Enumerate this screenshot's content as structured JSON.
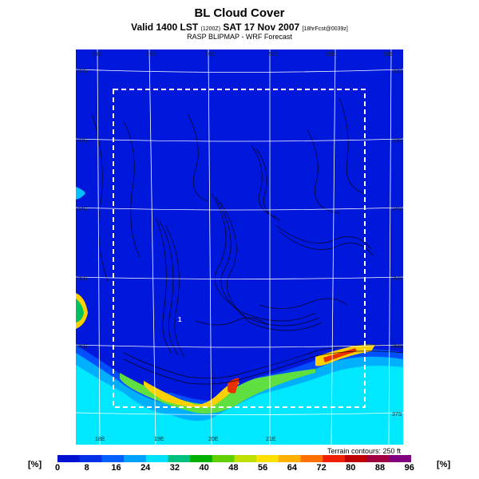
{
  "header": {
    "title": "BL Cloud Cover",
    "valid_prefix": "Valid 1400 LST",
    "valid_code": "(1200Z)",
    "valid_date": "SAT 17 Nov 2007",
    "forecast_tag": "[18hrFcst@0039z]",
    "subtitle": "RASP BLIPMAP - WRF Forecast"
  },
  "map": {
    "lon_labels_top": [
      "18E",
      "19E",
      "20E",
      "21E",
      "22E",
      "23E"
    ],
    "lon_labels_bottom": [
      "18E",
      "19E",
      "20E",
      "21E"
    ],
    "lat_labels_left": [
      "32S",
      "33S",
      "34S",
      "35S",
      "36S"
    ],
    "lat_labels_right": [
      "32S",
      "33S",
      "34S",
      "35S",
      "36S",
      "37S"
    ],
    "point_label": "1",
    "terrain_note": "Terrain contours: 250 ft"
  },
  "colorbar": {
    "unit": "[%]",
    "values": [
      "0",
      "8",
      "16",
      "24",
      "32",
      "40",
      "48",
      "56",
      "64",
      "72",
      "80",
      "88",
      "96"
    ],
    "colors": [
      "#0010d0",
      "#0030e8",
      "#0060ff",
      "#00a0ff",
      "#00e0ff",
      "#00c080",
      "#00b000",
      "#60d000",
      "#c0e000",
      "#ffe000",
      "#ffb000",
      "#ff7000",
      "#f02000",
      "#c00000",
      "#a00040",
      "#800080"
    ]
  }
}
